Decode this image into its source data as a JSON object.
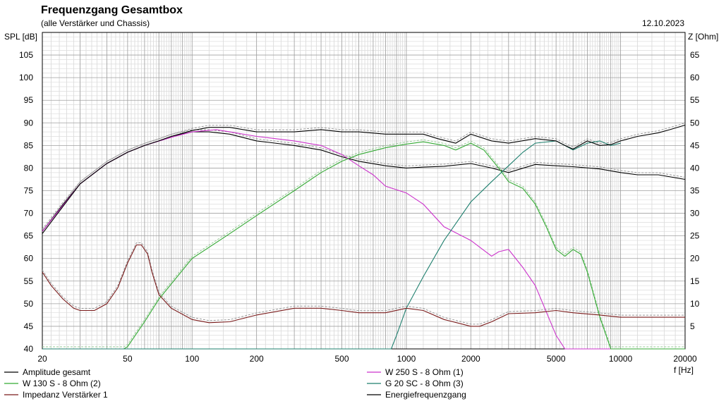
{
  "chart_data": {
    "type": "line",
    "title": "Frequenzgang Gesamtbox",
    "subtitle": "(alle Verstärker und Chassis)",
    "date": "12.10.2023",
    "ylabel_left": "SPL [dB]",
    "ylabel_right": "Z [Ohm]",
    "xlabel": "f [Hz]",
    "x_scale": "log",
    "xlim": [
      20,
      20000
    ],
    "ylim_left": [
      40,
      110
    ],
    "ylim_right": [
      0,
      70
    ],
    "grid": true,
    "legend_position": "bottom",
    "x_ticks": [
      {
        "v": 20,
        "label": "20"
      },
      {
        "v": 50,
        "label": "50"
      },
      {
        "v": 100,
        "label": "100"
      },
      {
        "v": 200,
        "label": "200"
      },
      {
        "v": 500,
        "label": "500"
      },
      {
        "v": 1000,
        "label": "1000"
      },
      {
        "v": 2000,
        "label": "2000"
      },
      {
        "v": 5000,
        "label": "5000"
      },
      {
        "v": 10000,
        "label": "10000"
      },
      {
        "v": 20000,
        "label": "20000"
      }
    ],
    "y_ticks_left": [
      "40",
      "45",
      "50",
      "55",
      "60",
      "65",
      "70",
      "75",
      "80",
      "85",
      "90",
      "95",
      "100",
      "105"
    ],
    "y_ticks_right": [
      "5",
      "10",
      "15",
      "20",
      "25",
      "30",
      "35",
      "40",
      "45",
      "50",
      "55",
      "60",
      "65"
    ],
    "series": [
      {
        "name": "Amplitude gesamt",
        "color": "#000000",
        "axis": "left",
        "x": [
          20,
          25,
          30,
          40,
          50,
          60,
          70,
          80,
          100,
          120,
          150,
          200,
          300,
          400,
          500,
          600,
          800,
          1000,
          1200,
          1500,
          2000,
          2500,
          3000,
          4000,
          5000,
          6000,
          8000,
          10000,
          12000,
          15000,
          20000
        ],
        "y": [
          66,
          72,
          76.5,
          81,
          83.5,
          85,
          86,
          87,
          88,
          88,
          87.5,
          86,
          85,
          84,
          82.5,
          81.5,
          80.5,
          80,
          80.2,
          80.4,
          81,
          80,
          79,
          80.8,
          80.5,
          80.3,
          79.8,
          79,
          78.5,
          78.5,
          77.5
        ]
      },
      {
        "name": "W 250 S - 8 Ohm  (1)",
        "color": "#cc33cc",
        "axis": "left",
        "x": [
          20,
          30,
          40,
          50,
          60,
          80,
          100,
          130,
          150,
          200,
          300,
          400,
          500,
          600,
          700,
          800,
          1000,
          1200,
          1500,
          2000,
          2200,
          2500,
          2700,
          3000,
          3500,
          4000,
          5000,
          5500,
          6000,
          8000,
          20000
        ],
        "y": [
          66,
          76.5,
          81,
          83.5,
          85,
          86.8,
          88,
          88.5,
          88,
          87,
          86,
          85,
          83,
          80.5,
          78.5,
          76,
          74.5,
          72,
          67,
          64,
          62.5,
          60.5,
          61.5,
          62,
          58,
          54,
          43,
          40,
          40,
          40,
          40
        ]
      },
      {
        "name": "W 130 S - 8 Ohm (2)",
        "color": "#33aa33",
        "axis": "left",
        "x": [
          20,
          48,
          50,
          60,
          70,
          100,
          150,
          200,
          300,
          400,
          500,
          600,
          800,
          1000,
          1200,
          1500,
          1700,
          2000,
          2300,
          2700,
          3000,
          3500,
          4000,
          4500,
          5000,
          5500,
          6000,
          6500,
          7000,
          8000,
          9000,
          20000
        ],
        "y": [
          40,
          40,
          40.5,
          46,
          51,
          60,
          65.5,
          69.5,
          75,
          79,
          81.5,
          83,
          84.5,
          85.3,
          85.8,
          85,
          84,
          85.5,
          84,
          80,
          77,
          75.5,
          72,
          67,
          62,
          60.5,
          62,
          61,
          57,
          47,
          40,
          40
        ]
      },
      {
        "name": "G 20 SC - 8 Ohm (3)",
        "color": "#1e7f6e",
        "axis": "left",
        "x": [
          20,
          850,
          900,
          1000,
          1200,
          1500,
          2000,
          2500,
          3000,
          3500,
          4000,
          5000,
          5500,
          6000,
          7000,
          8000,
          9000,
          10000
        ],
        "y": [
          40,
          40,
          43,
          49,
          56,
          64,
          72.5,
          77,
          80.5,
          83.5,
          85.5,
          86,
          85,
          84,
          85.5,
          86,
          85,
          85.5
        ]
      },
      {
        "name": "Impedanz Verstärker 1",
        "color": "#7a1a1a",
        "axis": "right",
        "x": [
          20,
          22,
          25,
          28,
          30,
          35,
          40,
          45,
          50,
          55,
          58,
          62,
          65,
          70,
          80,
          100,
          120,
          150,
          200,
          300,
          400,
          500,
          600,
          800,
          1000,
          1200,
          1500,
          2000,
          2200,
          2500,
          3000,
          4000,
          5000,
          6000,
          8000,
          10000,
          15000,
          20000
        ],
        "y": [
          17,
          14,
          11,
          9,
          8.5,
          8.5,
          10,
          13.5,
          19,
          23,
          23,
          21,
          17,
          12,
          9,
          6.5,
          5.8,
          6,
          7.5,
          9,
          9,
          8.5,
          8,
          8,
          9,
          8.5,
          6.5,
          5,
          5,
          6,
          7.8,
          8,
          8.5,
          8,
          7.5,
          7,
          7,
          7
        ]
      },
      {
        "name": "Energiefrequenzgang",
        "color": "#000000",
        "axis": "left",
        "x": [
          20,
          30,
          40,
          50,
          60,
          70,
          80,
          100,
          120,
          150,
          200,
          300,
          400,
          500,
          600,
          800,
          1000,
          1200,
          1400,
          1700,
          2000,
          2500,
          3000,
          4000,
          5000,
          5500,
          6000,
          7000,
          8000,
          9000,
          10000,
          12000,
          15000,
          17000,
          20000
        ],
        "y": [
          65.5,
          76.5,
          81,
          83.5,
          85,
          86,
          87,
          88.3,
          89,
          89,
          88,
          88,
          88.5,
          88,
          88,
          87.5,
          87.5,
          87.5,
          86.5,
          85.5,
          87.5,
          86,
          85.5,
          86.5,
          86,
          85,
          84.2,
          86,
          85,
          85.2,
          86,
          87,
          87.8,
          88.5,
          89.5
        ]
      }
    ]
  }
}
